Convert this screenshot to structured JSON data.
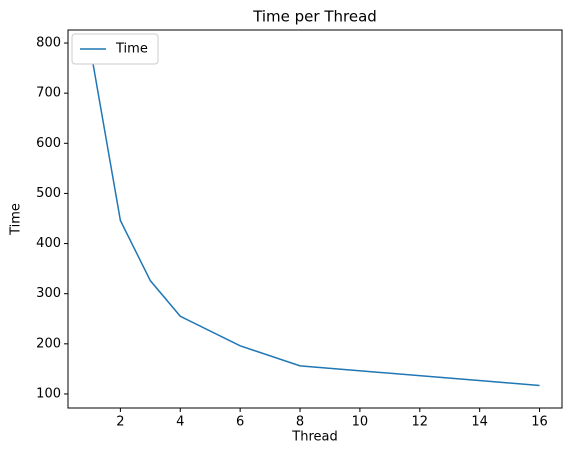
{
  "chart_data": {
    "type": "line",
    "title": "Time per Thread",
    "x_label": "Thread",
    "y_label": "Time",
    "x": [
      1,
      2,
      3,
      4,
      6,
      8,
      16
    ],
    "series": [
      {
        "name": "Time",
        "color": "#1f77b4",
        "values": [
          788,
          446,
          326,
          255,
          196,
          156,
          117
        ]
      }
    ],
    "xlim": [
      0.25,
      16.75
    ],
    "xticks": [
      2,
      4,
      6,
      8,
      10,
      12,
      14,
      16
    ],
    "ylim": [
      72,
      826
    ],
    "yticks": [
      100,
      200,
      300,
      400,
      500,
      600,
      700,
      800
    ],
    "legend": "upper-left",
    "grid": false
  }
}
